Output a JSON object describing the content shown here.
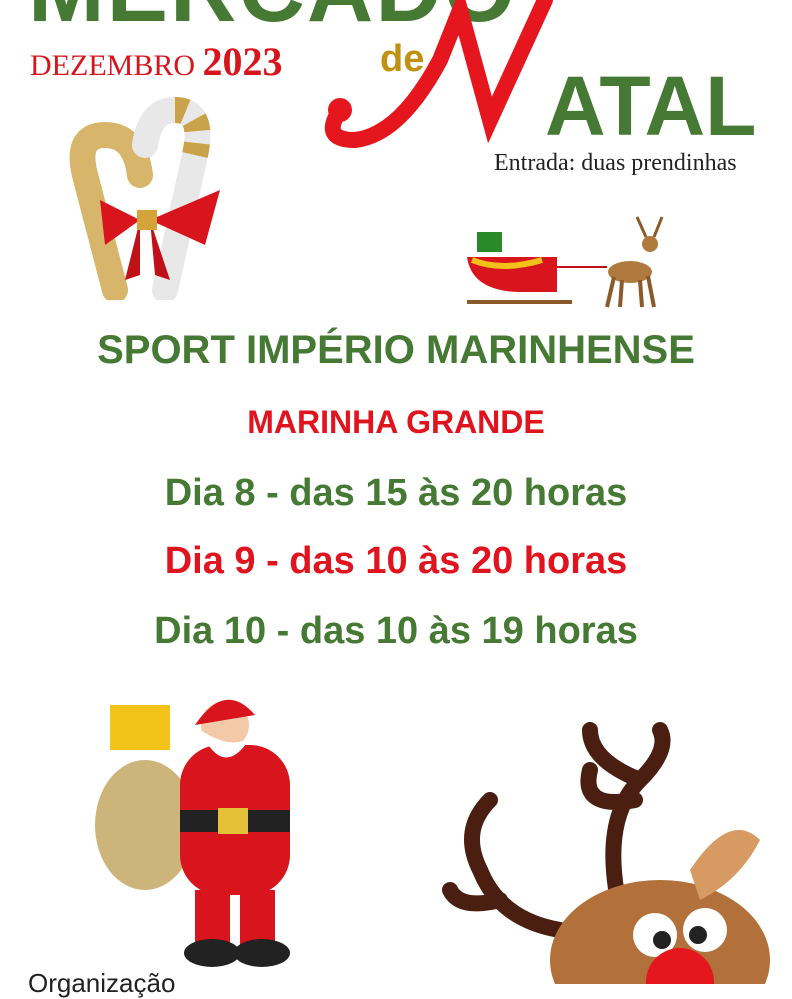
{
  "poster": {
    "title_top": "MERCADO",
    "month": "DEZEMBRO",
    "year": "2023",
    "de": "de",
    "natal_rest": "ATAL",
    "entrada": "Entrada: duas prendinhas",
    "venue": "SPORT IMPÉRIO MARINHENSE",
    "city": "MARINHA GRANDE",
    "days": [
      "Dia 8 - das 15 às 20 horas",
      "Dia 9 - das 10 às 20 horas",
      "Dia 10 - das 10 às 19 horas"
    ],
    "organizer_label": "Organização"
  },
  "colors": {
    "green": "#467a34",
    "red": "#e0141e",
    "gold": "#c19112"
  },
  "icons": [
    "candy-cane-icon",
    "sleigh-reindeer-icon",
    "santa-claus-icon",
    "reindeer-icon"
  ]
}
